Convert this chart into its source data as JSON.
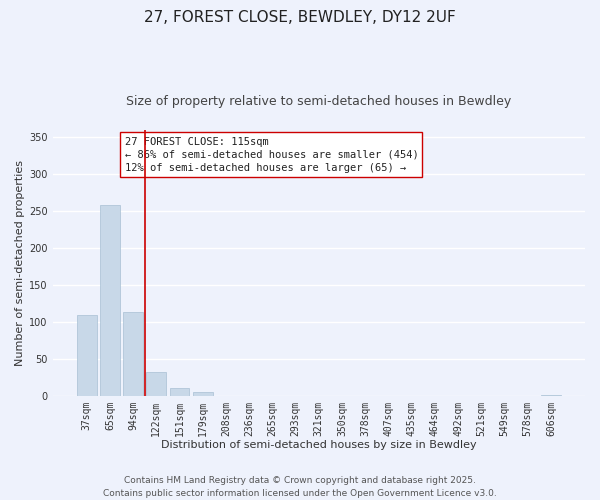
{
  "title": "27, FOREST CLOSE, BEWDLEY, DY12 2UF",
  "subtitle": "Size of property relative to semi-detached houses in Bewdley",
  "xlabel": "Distribution of semi-detached houses by size in Bewdley",
  "ylabel": "Number of semi-detached properties",
  "bar_labels": [
    "37sqm",
    "65sqm",
    "94sqm",
    "122sqm",
    "151sqm",
    "179sqm",
    "208sqm",
    "236sqm",
    "265sqm",
    "293sqm",
    "321sqm",
    "350sqm",
    "378sqm",
    "407sqm",
    "435sqm",
    "464sqm",
    "492sqm",
    "521sqm",
    "549sqm",
    "578sqm",
    "606sqm"
  ],
  "bar_values": [
    110,
    258,
    113,
    32,
    10,
    5,
    0,
    0,
    0,
    0,
    0,
    0,
    0,
    0,
    0,
    0,
    0,
    0,
    0,
    0,
    1
  ],
  "bar_color": "#c8d8e8",
  "bar_edge_color": "#a8c0d4",
  "vline_x_index": 3,
  "vline_color": "#cc0000",
  "annotation_title": "27 FOREST CLOSE: 115sqm",
  "annotation_line1": "← 86% of semi-detached houses are smaller (454)",
  "annotation_line2": "12% of semi-detached houses are larger (65) →",
  "annotation_box_color": "#ffffff",
  "annotation_box_edge": "#cc0000",
  "ylim": [
    0,
    360
  ],
  "yticks": [
    0,
    50,
    100,
    150,
    200,
    250,
    300,
    350
  ],
  "footer1": "Contains HM Land Registry data © Crown copyright and database right 2025.",
  "footer2": "Contains public sector information licensed under the Open Government Licence v3.0.",
  "background_color": "#eef2fc",
  "grid_color": "#ffffff",
  "title_fontsize": 11,
  "subtitle_fontsize": 9,
  "axis_label_fontsize": 8,
  "tick_fontsize": 7,
  "annotation_fontsize": 7.5,
  "footer_fontsize": 6.5
}
